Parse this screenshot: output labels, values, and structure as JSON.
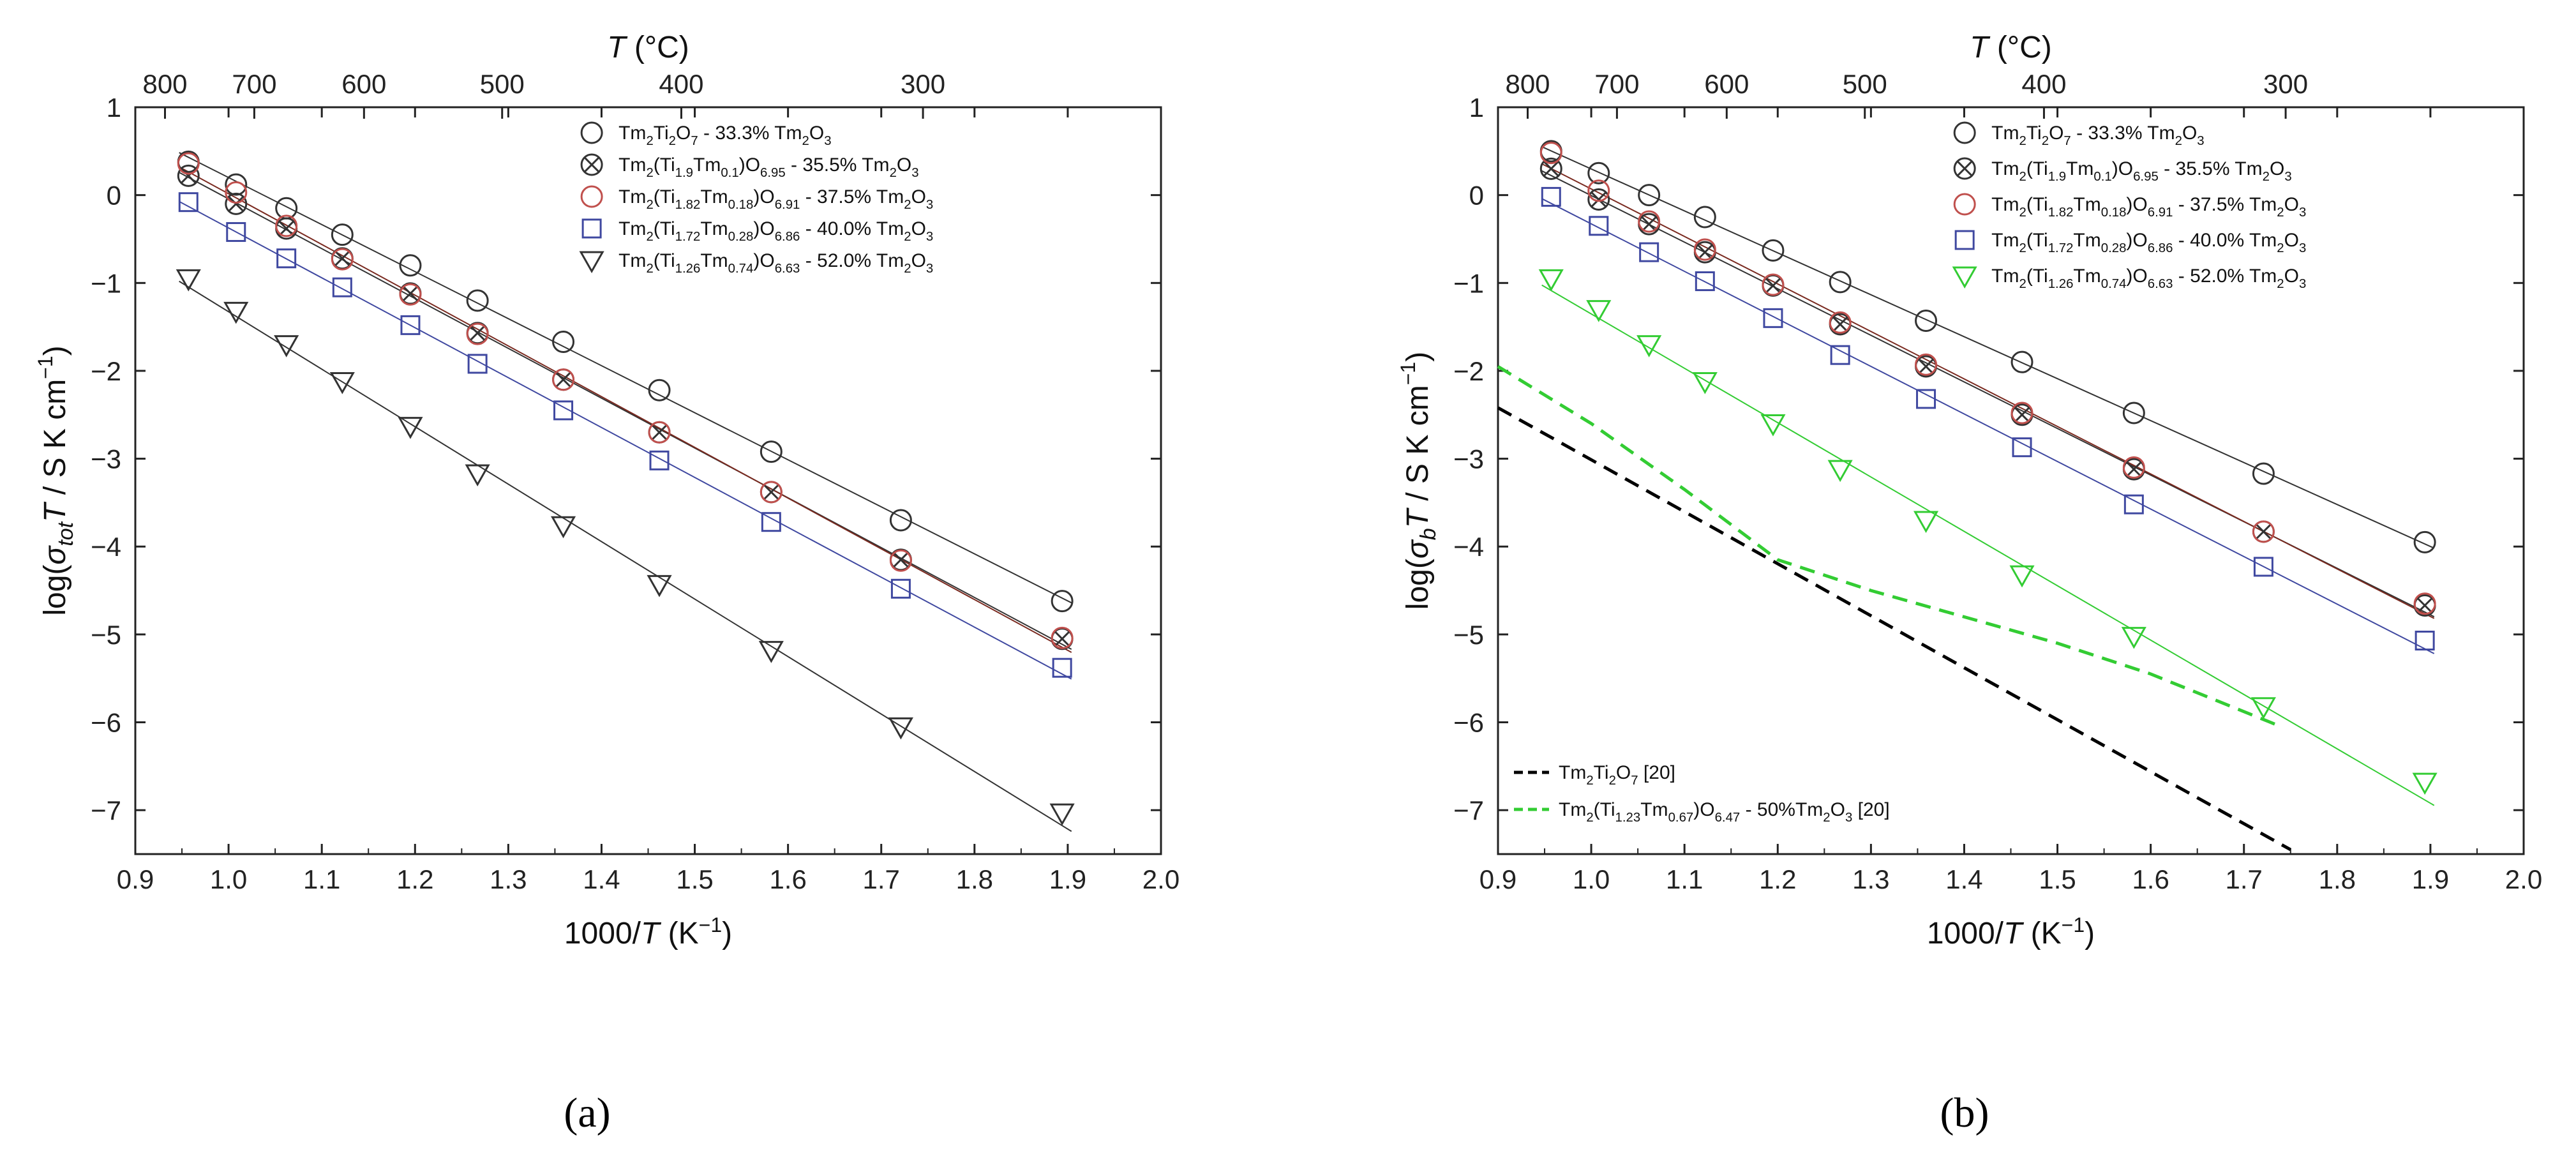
{
  "figure": {
    "panel_labels": [
      "(a)",
      "(b)"
    ]
  },
  "chart_data": [
    {
      "type": "scatter",
      "panel": "(a)",
      "xlabel": "1000/T (K⁻¹)",
      "ylabel": "log(σtotT / S K cm⁻¹)",
      "top_label": "T (°C)",
      "xlim": [
        0.9,
        2.0
      ],
      "ylim": [
        -7.5,
        1.0
      ],
      "xticks": [
        0.9,
        1.0,
        1.1,
        1.2,
        1.3,
        1.4,
        1.5,
        1.6,
        1.7,
        1.8,
        1.9,
        2.0
      ],
      "yticks": [
        1,
        0,
        -1,
        -2,
        -3,
        -4,
        -5,
        -6,
        -7
      ],
      "top_ticks": [
        800,
        700,
        600,
        500,
        400,
        300
      ],
      "legend_position": "top-right",
      "series": [
        {
          "name": "Tm2Ti2O7 - 33.3% Tm2O3",
          "marker": "circle",
          "color": "#333333",
          "x": [
            0.957,
            1.008,
            1.062,
            1.122,
            1.195,
            1.267,
            1.359,
            1.462,
            1.582,
            1.721,
            1.894
          ],
          "y": [
            0.38,
            0.12,
            -0.15,
            -0.45,
            -0.8,
            -1.2,
            -1.67,
            -2.22,
            -2.92,
            -3.7,
            -4.62
          ]
        },
        {
          "name": "Tm2(Ti1.9Tm0.1)O6.95 - 35.5% Tm2O3",
          "marker": "crossed-circle",
          "color": "#333333",
          "x": [
            0.957,
            1.008,
            1.062,
            1.122,
            1.195,
            1.267,
            1.359,
            1.462,
            1.582,
            1.721,
            1.894
          ],
          "y": [
            0.22,
            -0.1,
            -0.38,
            -0.72,
            -1.12,
            -1.57,
            -2.1,
            -2.7,
            -3.38,
            -4.15,
            -5.05
          ]
        },
        {
          "name": "Tm2(Ti1.82Tm0.18)O6.91 - 37.5% Tm2O3",
          "marker": "circle",
          "color": "#c0504d",
          "x": [
            0.957,
            1.008,
            1.062,
            1.122,
            1.195,
            1.267,
            1.359,
            1.462,
            1.582,
            1.721,
            1.894
          ],
          "y": [
            0.36,
            0.03,
            -0.35,
            -0.73,
            -1.13,
            -1.58,
            -2.1,
            -2.7,
            -3.38,
            -4.16,
            -5.04
          ]
        },
        {
          "name": "Tm2(Ti1.72Tm0.28)O6.86 - 40.0% Tm2O3",
          "marker": "square",
          "color": "#3f48a0",
          "x": [
            0.957,
            1.008,
            1.062,
            1.122,
            1.195,
            1.267,
            1.359,
            1.462,
            1.582,
            1.721,
            1.894
          ],
          "y": [
            -0.08,
            -0.42,
            -0.72,
            -1.05,
            -1.48,
            -1.92,
            -2.45,
            -3.02,
            -3.72,
            -4.48,
            -5.38
          ]
        },
        {
          "name": "Tm2(Ti1.26Tm0.74)O6.63 - 52.0% Tm2O3",
          "marker": "triangle-down",
          "color": "#333333",
          "x": [
            0.957,
            1.008,
            1.062,
            1.122,
            1.195,
            1.267,
            1.359,
            1.462,
            1.582,
            1.721,
            1.894
          ],
          "y": [
            -0.95,
            -1.32,
            -1.7,
            -2.12,
            -2.63,
            -3.17,
            -3.76,
            -4.43,
            -5.18,
            -6.05,
            -7.03
          ]
        }
      ]
    },
    {
      "type": "scatter",
      "panel": "(b)",
      "xlabel": "1000/T (K⁻¹)",
      "ylabel": "log(σbT / S K cm⁻¹)",
      "top_label": "T (°C)",
      "xlim": [
        0.9,
        2.0
      ],
      "ylim": [
        -7.5,
        1.0
      ],
      "xticks": [
        0.9,
        1.0,
        1.1,
        1.2,
        1.3,
        1.4,
        1.5,
        1.6,
        1.7,
        1.8,
        1.9,
        2.0
      ],
      "yticks": [
        1,
        0,
        -1,
        -2,
        -3,
        -4,
        -5,
        -6,
        -7
      ],
      "top_ticks": [
        800,
        700,
        600,
        500,
        400,
        300
      ],
      "legend_position": "top-right",
      "series": [
        {
          "name": "Tm2Ti2O7 - 33.3% Tm2O3",
          "marker": "circle",
          "color": "#333333",
          "x": [
            0.957,
            1.008,
            1.062,
            1.122,
            1.195,
            1.267,
            1.359,
            1.462,
            1.582,
            1.721,
            1.894
          ],
          "y": [
            0.5,
            0.25,
            0.0,
            -0.25,
            -0.63,
            -0.99,
            -1.43,
            -1.9,
            -2.48,
            -3.17,
            -3.95
          ]
        },
        {
          "name": "Tm2(Ti1.9Tm0.1)O6.95 - 35.5% Tm2O3",
          "marker": "crossed-circle",
          "color": "#333333",
          "x": [
            0.957,
            1.008,
            1.062,
            1.122,
            1.195,
            1.267,
            1.359,
            1.462,
            1.582,
            1.721,
            1.894
          ],
          "y": [
            0.3,
            -0.05,
            -0.33,
            -0.65,
            -1.03,
            -1.47,
            -1.95,
            -2.5,
            -3.12,
            -3.83,
            -4.67
          ]
        },
        {
          "name": "Tm2(Ti1.82Tm0.18)O6.91 - 37.5% Tm2O3",
          "marker": "circle",
          "color": "#c0504d",
          "x": [
            0.957,
            1.008,
            1.062,
            1.122,
            1.195,
            1.267,
            1.359,
            1.462,
            1.582,
            1.721,
            1.894
          ],
          "y": [
            0.48,
            0.05,
            -0.3,
            -0.62,
            -1.02,
            -1.45,
            -1.93,
            -2.48,
            -3.1,
            -3.83,
            -4.65
          ]
        },
        {
          "name": "Tm2(Ti1.72Tm0.28)O6.86 - 40.0% Tm2O3",
          "marker": "square",
          "color": "#3f48a0",
          "x": [
            0.957,
            1.008,
            1.062,
            1.122,
            1.195,
            1.267,
            1.359,
            1.462,
            1.582,
            1.721,
            1.894
          ],
          "y": [
            -0.02,
            -0.35,
            -0.65,
            -0.98,
            -1.4,
            -1.82,
            -2.32,
            -2.87,
            -3.52,
            -4.23,
            -5.07
          ]
        },
        {
          "name": "Tm2(Ti1.26Tm0.74)O6.63 - 52.0% Tm2O3",
          "marker": "triangle-down",
          "color": "#33cc33",
          "x": [
            0.957,
            1.008,
            1.062,
            1.122,
            1.195,
            1.267,
            1.359,
            1.462,
            1.582,
            1.721,
            1.894
          ],
          "y": [
            -0.95,
            -1.3,
            -1.7,
            -2.12,
            -2.6,
            -3.12,
            -3.7,
            -4.32,
            -5.02,
            -5.82,
            -6.68
          ]
        }
      ],
      "reference_lines": [
        {
          "name": "Tm2Ti2O7 [20]",
          "style": "dashed",
          "color": "#000000",
          "x": [
            0.9,
            1.75
          ],
          "y": [
            -2.42,
            -7.45
          ]
        },
        {
          "name": "Tm2(Ti1.23Tm0.67)O6.47 - 50%Tm2O3 [20]",
          "style": "dashed",
          "color": "#33cc33",
          "x": [
            0.9,
            1.0,
            1.1,
            1.2,
            1.3,
            1.4,
            1.5,
            1.6,
            1.74
          ],
          "y": [
            -1.95,
            -2.6,
            -3.35,
            -4.15,
            -4.5,
            -4.8,
            -5.1,
            -5.45,
            -6.05
          ]
        }
      ]
    }
  ]
}
